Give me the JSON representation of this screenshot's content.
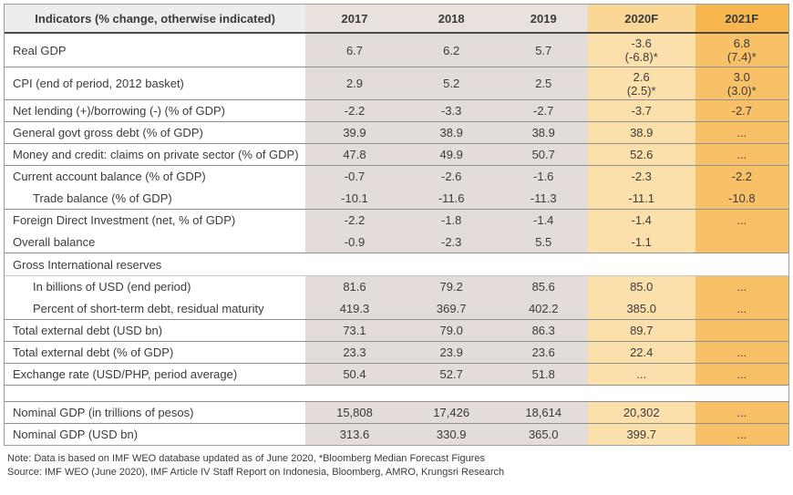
{
  "table": {
    "columns": [
      "Indicators (% change, otherwise indicated)",
      "2017",
      "2018",
      "2019",
      "2020F",
      "2021F"
    ],
    "rows": [
      {
        "label": "Real GDP",
        "indent": 0,
        "type": "data",
        "tall": true,
        "border_top": "none",
        "values": [
          "6.7",
          "6.2",
          "5.7",
          "-3.6\n(-6.8)*",
          "6.8\n(7.4)*"
        ]
      },
      {
        "label": "CPI (end of period, 2012 basket)",
        "indent": 0,
        "type": "data",
        "tall": true,
        "border_top": "gray",
        "values": [
          "2.9",
          "5.2",
          "2.5",
          "2.6\n(2.5)*",
          "3.0\n(3.0)*"
        ]
      },
      {
        "label": "Net lending (+)/borrowing (-) (% of GDP)",
        "indent": 0,
        "type": "data",
        "border_top": "gray",
        "values": [
          "-2.2",
          "-3.3",
          "-2.7",
          "-3.7",
          "-2.7"
        ]
      },
      {
        "label": "General govt gross debt (% of GDP)",
        "indent": 0,
        "type": "data",
        "border_top": "gray",
        "values": [
          "39.9",
          "38.9",
          "38.9",
          "38.9",
          "..."
        ]
      },
      {
        "label": "Money and credit: claims on private sector (% of GDP)",
        "indent": 0,
        "type": "data",
        "border_top": "gray",
        "values": [
          "47.8",
          "49.9",
          "50.7",
          "52.6",
          "..."
        ]
      },
      {
        "label": "Current account balance (% of GDP)",
        "indent": 0,
        "type": "data",
        "border_top": "gray",
        "values": [
          "-0.7",
          "-2.6",
          "-1.6",
          "-2.3",
          "-2.2"
        ]
      },
      {
        "label": "Trade balance (% of GDP)",
        "indent": 1,
        "type": "data",
        "border_top": "none",
        "values": [
          "-10.1",
          "-11.6",
          "-11.3",
          "-11.1",
          "-10.8"
        ]
      },
      {
        "label": "Foreign Direct Investment (net, % of GDP)",
        "indent": 0,
        "type": "data",
        "border_top": "gray",
        "values": [
          "-2.2",
          "-1.8",
          "-1.4",
          "-1.4",
          "..."
        ]
      },
      {
        "label": "Overall balance",
        "indent": 0,
        "type": "data",
        "border_top": "none",
        "values": [
          "-0.9",
          "-2.3",
          "5.5",
          "-1.1",
          ""
        ]
      },
      {
        "label": "Gross International reserves",
        "indent": 0,
        "type": "section",
        "border_top": "gray",
        "values": []
      },
      {
        "label": "In billions of USD (end period)",
        "indent": 1,
        "type": "data",
        "border_top": "light",
        "values": [
          "81.6",
          "79.2",
          "85.6",
          "85.0",
          "..."
        ]
      },
      {
        "label": "Percent of short-term debt, residual maturity",
        "indent": 1,
        "type": "data",
        "border_top": "none",
        "values": [
          "419.3",
          "369.7",
          "402.2",
          "385.0",
          "..."
        ]
      },
      {
        "label": "Total external debt (USD bn)",
        "indent": 0,
        "type": "data",
        "border_top": "gray",
        "values": [
          "73.1",
          "79.0",
          "86.3",
          "89.7",
          ""
        ]
      },
      {
        "label": "Total external debt (% of GDP)",
        "indent": 0,
        "type": "data",
        "border_top": "gray",
        "values": [
          "23.3",
          "23.9",
          "23.6",
          "22.4",
          "..."
        ]
      },
      {
        "label": "Exchange rate (USD/PHP, period average)",
        "indent": 0,
        "type": "data",
        "border_top": "gray",
        "values": [
          "50.4",
          "52.7",
          "51.8",
          "...",
          "..."
        ]
      },
      {
        "label": "",
        "indent": 0,
        "type": "spacer",
        "border_top": "gray",
        "values": []
      },
      {
        "label": "Nominal GDP (in trillions of pesos)",
        "indent": 0,
        "type": "data",
        "border_top": "gray",
        "values": [
          "15,808",
          "17,426",
          "18,614",
          "20,302",
          "..."
        ]
      },
      {
        "label": "Nominal GDP (USD bn)",
        "indent": 0,
        "type": "data",
        "border_top": "gray",
        "values": [
          "313.6",
          "330.9",
          "365.0",
          "399.7",
          "..."
        ]
      }
    ]
  },
  "footer": {
    "note": "Note: Data is based on IMF WEO database updated as of June 2020, *Bloomberg Median Forecast Figures",
    "source": "Source: IMF WEO (June 2020),  IMF  Article IV Staff Report on Indonesia, Bloomberg, AMRO,  Krungsri Research"
  },
  "colors": {
    "header_label_bg": "#EFEDEB",
    "header_year_bg": "#E8E1DD",
    "header_2020f_bg": "#FBD795",
    "header_2021f_bg": "#F7B64E",
    "body_year_bg": "#E3DCD9",
    "body_2020f_bg": "#FCE0AC",
    "body_2021f_bg": "#F9C167",
    "text": "#3B3B3B",
    "border_dark": "#4A4A4A",
    "border_gray": "#8F8F8F",
    "border_light": "#C6C6C6",
    "border_outer": "#9C9C9C"
  }
}
